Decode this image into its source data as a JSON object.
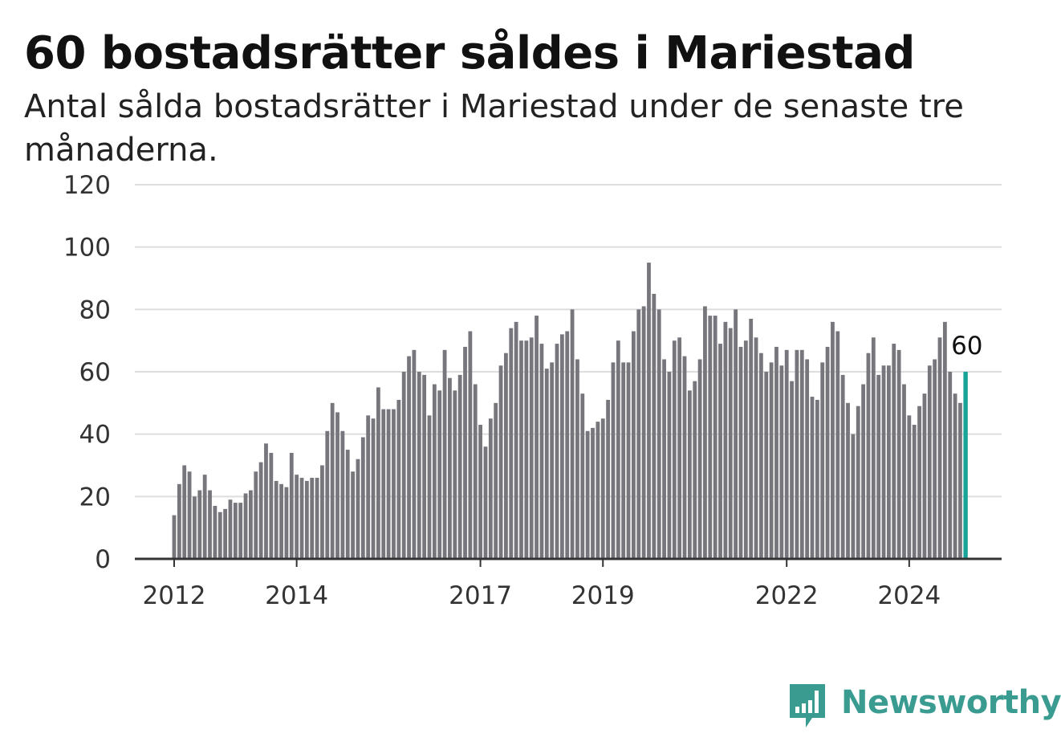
{
  "title": "60 bostadsrätter såldes i Mariestad",
  "subtitle": "Antal sålda bostadsrätter i Mariestad under de senaste tre månaderna.",
  "logo": {
    "name": "Newsworthy",
    "icon": "bar-chart-speech-bubble-icon",
    "color": "#3a9b91"
  },
  "colors": {
    "bar": "#76767c",
    "highlight": "#17a398",
    "grid": "#dddddd",
    "axis": "#333333"
  },
  "chart_data": {
    "type": "bar",
    "title": "60 bostadsrätter såldes i Mariestad",
    "subtitle": "Antal sålda bostadsrätter i Mariestad under de senaste tre månaderna.",
    "xlabel": "",
    "ylabel": "",
    "ylim": [
      0,
      120
    ],
    "yticks": [
      0,
      20,
      40,
      60,
      80,
      100,
      120
    ],
    "grid": true,
    "x_start": "2012-01",
    "x_end": "2024-09",
    "x_ticks": [
      {
        "label": "2012",
        "date": "2012-01"
      },
      {
        "label": "2014",
        "date": "2014-01"
      },
      {
        "label": "2017",
        "date": "2017-01"
      },
      {
        "label": "2019",
        "date": "2019-01"
      },
      {
        "label": "2022",
        "date": "2022-01"
      },
      {
        "label": "2024",
        "date": "2024-01"
      }
    ],
    "highlight_label": "60",
    "values": [
      14,
      24,
      30,
      28,
      20,
      22,
      27,
      22,
      17,
      15,
      16,
      19,
      18,
      18,
      21,
      22,
      28,
      31,
      37,
      34,
      25,
      24,
      23,
      34,
      27,
      26,
      25,
      26,
      26,
      30,
      41,
      50,
      47,
      41,
      35,
      28,
      32,
      39,
      46,
      45,
      55,
      48,
      48,
      48,
      51,
      60,
      65,
      67,
      60,
      59,
      46,
      56,
      54,
      67,
      58,
      54,
      59,
      68,
      73,
      56,
      43,
      36,
      45,
      50,
      62,
      66,
      74,
      76,
      70,
      70,
      71,
      78,
      69,
      61,
      63,
      69,
      72,
      73,
      80,
      64,
      53,
      41,
      42,
      44,
      45,
      51,
      63,
      70,
      63,
      63,
      73,
      80,
      81,
      95,
      85,
      80,
      64,
      60,
      70,
      71,
      65,
      54,
      57,
      64,
      81,
      78,
      78,
      69,
      76,
      74,
      80,
      68,
      70,
      77,
      71,
      66,
      60,
      63,
      68,
      62,
      67,
      57,
      67,
      67,
      64,
      52,
      51,
      63,
      68,
      76,
      73,
      59,
      50,
      40,
      49,
      56,
      66,
      71,
      59,
      62,
      62,
      69,
      67,
      56,
      46,
      43,
      49,
      53,
      62,
      64,
      71,
      76,
      60,
      53,
      50,
      60
    ]
  }
}
